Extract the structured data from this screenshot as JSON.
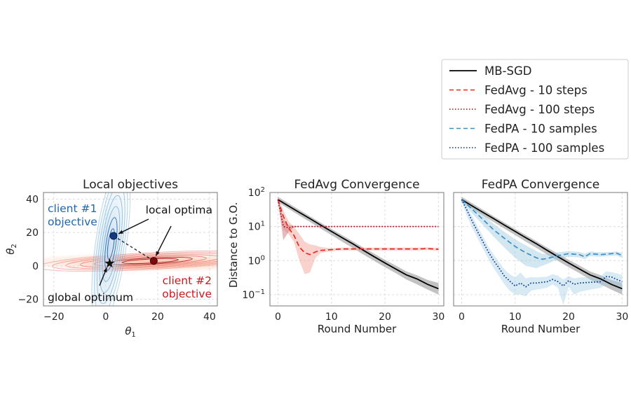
{
  "legend": {
    "placement": "top-right",
    "entries": [
      {
        "label": "MB-SGD",
        "color": "#000000",
        "style": "solid"
      },
      {
        "label": "FedAvg - 10 steps",
        "color": "#e8291c",
        "style": "dashed"
      },
      {
        "label": "FedAvg - 100 steps",
        "color": "#a50f15",
        "style": "dotted"
      },
      {
        "label": "FedPA - 10 samples",
        "color": "#3a8fc7",
        "style": "dashed"
      },
      {
        "label": "FedPA - 100 samples",
        "color": "#08308f",
        "style": "dotted"
      }
    ]
  },
  "chart_data": [
    {
      "type": "contour",
      "title": "Local objectives",
      "xlabel": "θ1",
      "ylabel": "θ2",
      "xlim": [
        -24,
        43
      ],
      "ylim": [
        -24,
        44
      ],
      "xticks": [
        -20,
        0,
        20,
        40
      ],
      "yticks": [
        -20,
        0,
        20,
        40
      ],
      "grid": true,
      "client1": {
        "label": "client #1\nobjective",
        "color": "#2166ac",
        "optimum": [
          3,
          18
        ]
      },
      "client2": {
        "label": "client #2\nobjective",
        "color": "#cb181d",
        "optimum": [
          18.5,
          3
        ]
      },
      "global_optimum": [
        1.5,
        1.5
      ],
      "annotations": [
        {
          "text": "local optima",
          "color": "#000000"
        },
        {
          "text": "global optimum",
          "color": "#000000"
        }
      ]
    },
    {
      "type": "line",
      "title": "FedAvg Convergence",
      "xlabel": "Round Number",
      "ylabel": "Distance to G.O.",
      "yscale": "log",
      "xlim": [
        -1.5,
        31
      ],
      "ylim_log10": [
        -1.33,
        2.0
      ],
      "xticks": [
        0,
        10,
        20,
        30
      ],
      "yticks": [
        "10^2",
        "10^1",
        "10^0",
        "10^-1"
      ],
      "grid": true,
      "series": [
        {
          "name": "MB-SGD",
          "x": [
            0,
            2,
            4,
            6,
            8,
            10,
            12,
            14,
            16,
            18,
            20,
            22,
            24,
            26,
            28,
            30
          ],
          "y": [
            62,
            40,
            26,
            17,
            11,
            7.2,
            4.7,
            3.1,
            2.0,
            1.3,
            0.85,
            0.57,
            0.38,
            0.29,
            0.2,
            0.15
          ],
          "lo": [
            52,
            33,
            21,
            13.5,
            8.7,
            5.6,
            3.6,
            2.35,
            1.5,
            0.98,
            0.64,
            0.43,
            0.28,
            0.2,
            0.14,
            0.1
          ],
          "hi": [
            75,
            48,
            31,
            20,
            13,
            8.5,
            5.6,
            3.7,
            2.4,
            1.6,
            1.05,
            0.72,
            0.48,
            0.37,
            0.27,
            0.22
          ]
        },
        {
          "name": "FedAvg - 10 steps",
          "x": [
            0,
            1,
            2,
            3,
            4,
            5,
            6,
            7,
            8,
            10,
            12,
            14,
            16,
            18,
            20,
            22,
            24,
            26,
            28,
            30
          ],
          "y": [
            62,
            20,
            9,
            5.5,
            2.5,
            1.7,
            1.5,
            1.8,
            2.0,
            2.1,
            2.2,
            2.2,
            2.2,
            2.2,
            2.2,
            2.2,
            2.2,
            2.2,
            2.25,
            2.15
          ],
          "lo": [
            55,
            8,
            6,
            3.5,
            1.0,
            0.4,
            0.45,
            1.2,
            1.7,
            1.9,
            2.0,
            2.0,
            2.0,
            2.0,
            2.0,
            2.0,
            2.0,
            2.0,
            2.05,
            1.95
          ],
          "hi": [
            70,
            30,
            14,
            10,
            6,
            3.6,
            3.0,
            2.8,
            2.5,
            2.3,
            2.4,
            2.4,
            2.4,
            2.4,
            2.4,
            2.4,
            2.4,
            2.4,
            2.45,
            2.35
          ]
        },
        {
          "name": "FedAvg - 100 steps",
          "x": [
            0,
            1,
            2,
            3,
            4,
            6,
            10,
            15,
            20,
            25,
            30
          ],
          "y": [
            62,
            10,
            9.2,
            10,
            10,
            10,
            10,
            10,
            10,
            10,
            10
          ],
          "lo": [
            55,
            4,
            7,
            9.5,
            9.8,
            9.8,
            9.8,
            9.8,
            9.8,
            9.8,
            9.8
          ],
          "hi": [
            70,
            16,
            11,
            10.5,
            10.2,
            10.2,
            10.2,
            10.2,
            10.2,
            10.2,
            10.2
          ]
        }
      ]
    },
    {
      "type": "line",
      "title": "FedPA Convergence",
      "xlabel": "Round Number",
      "ylabel": "",
      "yscale": "log",
      "xlim": [
        -1.5,
        31
      ],
      "ylim_log10": [
        -1.33,
        2.0
      ],
      "xticks": [
        0,
        10,
        20,
        30
      ],
      "yticks": [],
      "grid": true,
      "series": [
        {
          "name": "MB-SGD",
          "x": [
            0,
            2,
            4,
            6,
            8,
            10,
            12,
            14,
            16,
            18,
            20,
            22,
            24,
            26,
            28,
            30
          ],
          "y": [
            62,
            40,
            26,
            17,
            11,
            7.2,
            4.7,
            3.1,
            2.0,
            1.3,
            0.85,
            0.57,
            0.38,
            0.29,
            0.2,
            0.15
          ],
          "lo": [
            52,
            33,
            21,
            13.5,
            8.7,
            5.6,
            3.6,
            2.35,
            1.5,
            0.98,
            0.64,
            0.43,
            0.28,
            0.2,
            0.14,
            0.1
          ],
          "hi": [
            75,
            48,
            31,
            20,
            13,
            8.5,
            5.6,
            3.7,
            2.4,
            1.6,
            1.05,
            0.72,
            0.48,
            0.37,
            0.27,
            0.22
          ]
        },
        {
          "name": "FedPA - 10 samples",
          "x": [
            0,
            2,
            4,
            6,
            8,
            10,
            12,
            14,
            15,
            16,
            18,
            20,
            22,
            23,
            24,
            26,
            28,
            29,
            30
          ],
          "y": [
            62,
            32,
            16,
            8,
            4.5,
            2.6,
            1.7,
            1.2,
            1.1,
            1.15,
            1.4,
            1.6,
            1.5,
            1.3,
            1.6,
            1.5,
            1.6,
            1.65,
            1.4
          ],
          "lo": [
            55,
            24,
            11,
            5,
            2.4,
            1.2,
            0.7,
            0.6,
            0.7,
            0.8,
            1.1,
            1.3,
            1.25,
            1.1,
            1.35,
            1.3,
            1.4,
            1.4,
            1.2
          ],
          "hi": [
            70,
            40,
            22,
            12,
            7,
            4.2,
            2.8,
            1.9,
            1.6,
            1.55,
            1.75,
            1.9,
            1.8,
            1.6,
            1.85,
            1.75,
            1.8,
            1.85,
            1.7
          ]
        },
        {
          "name": "FedPA - 100 samples",
          "x": [
            0,
            1,
            2,
            3,
            4,
            5,
            6,
            7,
            8,
            9,
            10,
            11,
            12,
            13,
            14,
            16,
            17,
            18,
            19,
            20,
            21,
            22,
            24,
            26,
            27,
            28,
            29,
            30
          ],
          "y": [
            62,
            30,
            14,
            7,
            3.5,
            1.8,
            1.0,
            0.6,
            0.35,
            0.25,
            0.18,
            0.22,
            0.17,
            0.22,
            0.22,
            0.24,
            0.28,
            0.24,
            0.18,
            0.26,
            0.2,
            0.22,
            0.23,
            0.24,
            0.34,
            0.33,
            0.28,
            0.24
          ],
          "lo": [
            55,
            20,
            9,
            4.5,
            2.2,
            1.1,
            0.6,
            0.35,
            0.2,
            0.13,
            0.1,
            0.1,
            0.09,
            0.13,
            0.14,
            0.16,
            0.2,
            0.16,
            0.05,
            0.17,
            0.1,
            0.12,
            0.14,
            0.16,
            0.2,
            0.2,
            0.16,
            0.12
          ],
          "hi": [
            70,
            38,
            20,
            10,
            5,
            2.6,
            1.5,
            0.9,
            0.55,
            0.4,
            0.32,
            0.45,
            0.3,
            0.33,
            0.32,
            0.34,
            0.4,
            0.36,
            0.28,
            0.35,
            0.3,
            0.32,
            0.33,
            0.35,
            0.48,
            0.46,
            0.42,
            0.38
          ]
        }
      ]
    }
  ]
}
